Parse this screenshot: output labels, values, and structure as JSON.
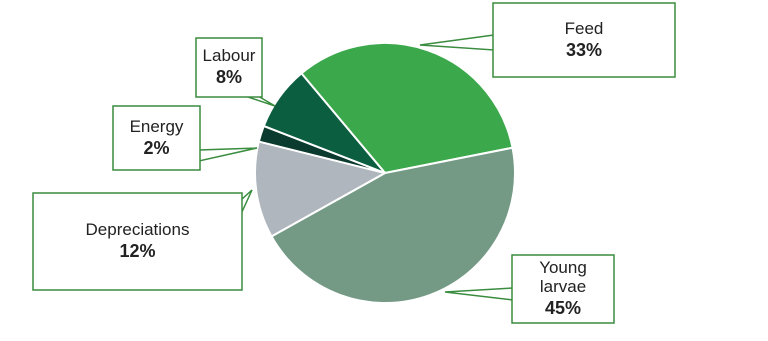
{
  "chart_data": {
    "type": "pie",
    "categories": [
      "Feed",
      "Young larvae",
      "Depreciations",
      "Energy",
      "Labour"
    ],
    "values": [
      33,
      45,
      12,
      2,
      8
    ],
    "value_labels": [
      "33%",
      "45%",
      "12%",
      "2%",
      "8%"
    ],
    "colors": [
      "#3ba84b",
      "#749a86",
      "#afb6bd",
      "#0b3b2e",
      "#0c5e40"
    ]
  }
}
